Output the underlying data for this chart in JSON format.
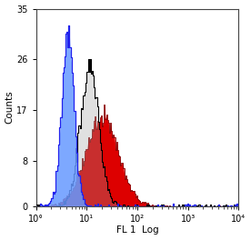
{
  "title": "",
  "xlabel": "FL 1  Log",
  "ylabel": "Counts",
  "xlim_log": [
    1.0,
    10000.0
  ],
  "ylim": [
    0,
    35
  ],
  "yticks": [
    0,
    8,
    17,
    26,
    35
  ],
  "xtick_labels": [
    "10°",
    "10¹",
    "10²",
    "10³",
    "10⁴"
  ],
  "xtick_positions": [
    1,
    10,
    100,
    1000,
    10000
  ],
  "blue_peak_log": 0.62,
  "blue_sigma_log": 0.12,
  "blue_height": 32,
  "blue_n": 6000,
  "black_peak_log": 1.05,
  "black_sigma_log": 0.18,
  "black_height": 26,
  "black_n": 9000,
  "red_peak_log": 1.3,
  "red_sigma_log": 0.32,
  "red_height": 18,
  "red_n": 14000,
  "n_bins": 200,
  "x_range_min": 0.0,
  "x_range_max": 4.0,
  "blue_color": "#2222ee",
  "blue_fill": "#6699ff",
  "red_color": "#880000",
  "red_fill": "#dd0000",
  "black_color": "#000000",
  "gray_color": "#999999",
  "bg_color": "#ffffff",
  "random_seed": 99
}
